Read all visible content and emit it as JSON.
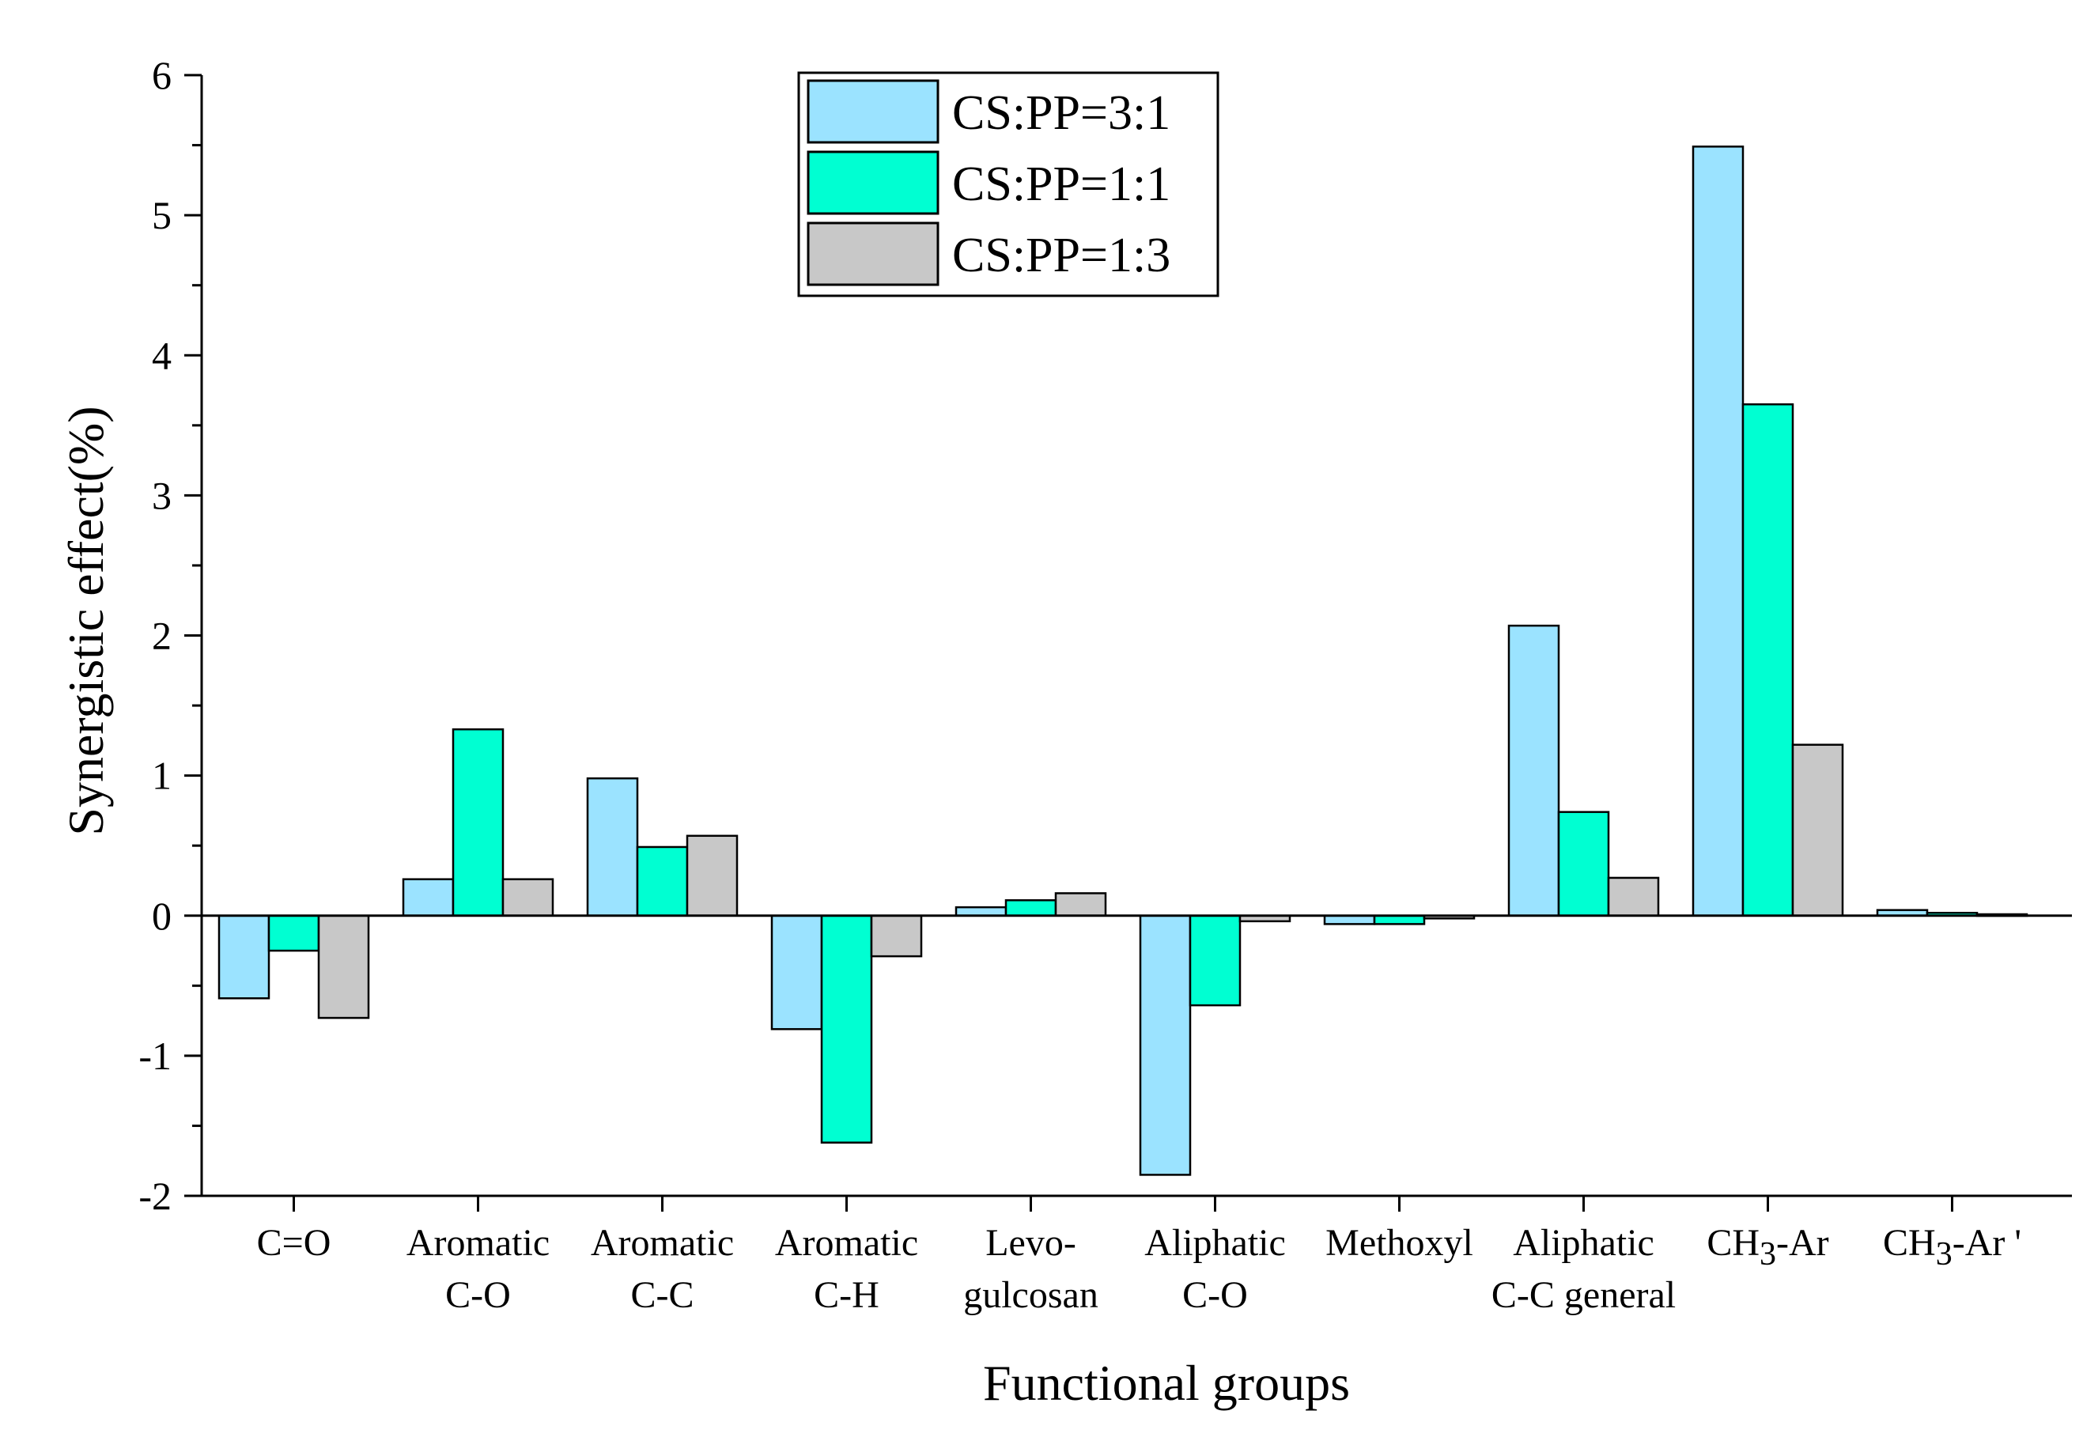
{
  "chart_data": {
    "type": "bar",
    "title": "",
    "xlabel": "Functional groups",
    "ylabel": "Synergistic effect(%)",
    "ylim": [
      -2,
      6
    ],
    "yticks": [
      -2,
      -1,
      0,
      1,
      2,
      3,
      4,
      5,
      6
    ],
    "y_tick_labels": [
      "-2",
      "-1",
      "0",
      "1",
      "2",
      "3",
      "4",
      "5",
      "6"
    ],
    "grid": false,
    "legend_position": "top-center",
    "categories": [
      {
        "lines": [
          "C=O"
        ]
      },
      {
        "lines": [
          "Aromatic",
          "C-O"
        ]
      },
      {
        "lines": [
          "Aromatic",
          "C-C"
        ]
      },
      {
        "lines": [
          "Aromatic",
          "C-H"
        ]
      },
      {
        "lines": [
          "Levo-",
          "gulcosan"
        ]
      },
      {
        "lines": [
          "Aliphatic",
          "C-O"
        ]
      },
      {
        "lines": [
          "Methoxyl"
        ]
      },
      {
        "lines": [
          "Aliphatic",
          "C-C general"
        ]
      },
      {
        "lines": [
          {
            "pre": "CH",
            "sub": "3",
            "post": "-Ar"
          }
        ]
      },
      {
        "lines": [
          {
            "pre": "CH",
            "sub": "3",
            "post": "-Ar '"
          }
        ]
      }
    ],
    "series": [
      {
        "name": "CS:PP=3:1",
        "color": "#9be3ff",
        "values": [
          -0.59,
          0.26,
          0.98,
          -0.81,
          0.06,
          -1.85,
          -0.06,
          2.07,
          5.49,
          0.04
        ]
      },
      {
        "name": "CS:PP=1:1",
        "color": "#00ffd2",
        "values": [
          -0.25,
          1.33,
          0.49,
          -1.62,
          0.11,
          -0.64,
          -0.06,
          0.74,
          3.65,
          0.02
        ]
      },
      {
        "name": "CS:PP=1:3",
        "color": "#c8c8c8",
        "values": [
          -0.73,
          0.26,
          0.57,
          -0.29,
          0.16,
          -0.04,
          -0.02,
          0.27,
          1.22,
          0.01
        ]
      }
    ]
  }
}
